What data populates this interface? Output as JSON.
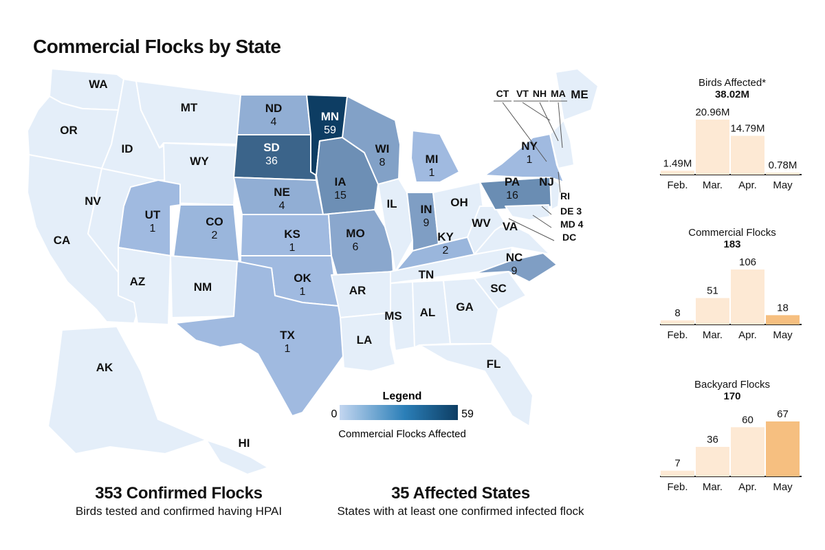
{
  "title": "Commercial Flocks by State",
  "colors": {
    "scale_low": "#a9c2e8",
    "scale_high": "#0d3d63",
    "base_fill": "#e4eef9",
    "state_stroke": "#ffffff",
    "bar_light": "#fde9d4",
    "bar_mid": "#fbd9b2",
    "bar_strong": "#f6bf80"
  },
  "states": [
    {
      "abbr": "WA",
      "flocks": ""
    },
    {
      "abbr": "OR",
      "flocks": ""
    },
    {
      "abbr": "CA",
      "flocks": ""
    },
    {
      "abbr": "NV",
      "flocks": ""
    },
    {
      "abbr": "ID",
      "flocks": ""
    },
    {
      "abbr": "MT",
      "flocks": ""
    },
    {
      "abbr": "WY",
      "flocks": ""
    },
    {
      "abbr": "UT",
      "flocks": "1"
    },
    {
      "abbr": "AZ",
      "flocks": ""
    },
    {
      "abbr": "CO",
      "flocks": "2"
    },
    {
      "abbr": "NM",
      "flocks": ""
    },
    {
      "abbr": "ND",
      "flocks": "4"
    },
    {
      "abbr": "SD",
      "flocks": "36"
    },
    {
      "abbr": "NE",
      "flocks": "4"
    },
    {
      "abbr": "KS",
      "flocks": "1"
    },
    {
      "abbr": "OK",
      "flocks": "1"
    },
    {
      "abbr": "TX",
      "flocks": "1"
    },
    {
      "abbr": "MN",
      "flocks": "59"
    },
    {
      "abbr": "IA",
      "flocks": "15"
    },
    {
      "abbr": "MO",
      "flocks": "6"
    },
    {
      "abbr": "AR",
      "flocks": ""
    },
    {
      "abbr": "LA",
      "flocks": ""
    },
    {
      "abbr": "WI",
      "flocks": "8"
    },
    {
      "abbr": "IL",
      "flocks": ""
    },
    {
      "abbr": "MI",
      "flocks": "1"
    },
    {
      "abbr": "IN",
      "flocks": "9"
    },
    {
      "abbr": "OH",
      "flocks": ""
    },
    {
      "abbr": "KY",
      "flocks": "2"
    },
    {
      "abbr": "TN",
      "flocks": ""
    },
    {
      "abbr": "MS",
      "flocks": ""
    },
    {
      "abbr": "AL",
      "flocks": ""
    },
    {
      "abbr": "GA",
      "flocks": ""
    },
    {
      "abbr": "FL",
      "flocks": ""
    },
    {
      "abbr": "SC",
      "flocks": ""
    },
    {
      "abbr": "NC",
      "flocks": "9"
    },
    {
      "abbr": "VA",
      "flocks": ""
    },
    {
      "abbr": "WV",
      "flocks": ""
    },
    {
      "abbr": "PA",
      "flocks": "16"
    },
    {
      "abbr": "NY",
      "flocks": "1"
    },
    {
      "abbr": "NJ",
      "flocks": ""
    },
    {
      "abbr": "ME",
      "flocks": ""
    },
    {
      "abbr": "AK",
      "flocks": ""
    },
    {
      "abbr": "HI",
      "flocks": ""
    }
  ],
  "small_states": [
    {
      "abbr": "CT",
      "flocks": ""
    },
    {
      "abbr": "VT",
      "flocks": ""
    },
    {
      "abbr": "NH",
      "flocks": ""
    },
    {
      "abbr": "MA",
      "flocks": ""
    },
    {
      "abbr": "RI",
      "flocks": ""
    },
    {
      "abbr": "DE",
      "flocks": "3"
    },
    {
      "abbr": "MD",
      "flocks": "4"
    },
    {
      "abbr": "DC",
      "flocks": ""
    }
  ],
  "legend": {
    "title": "Legend",
    "min": "0",
    "max": "59",
    "caption": "Commercial Flocks Affected"
  },
  "stats": {
    "confirmed_flocks": {
      "headline": "353 Confirmed Flocks",
      "sub": "Birds tested and confirmed having HPAI"
    },
    "affected_states": {
      "headline": "35 Affected States",
      "sub": "States with at least one confirmed infected flock"
    }
  },
  "chart_data": [
    {
      "type": "bar",
      "title": "Birds Affected*",
      "total": "38.02M",
      "categories": [
        "Feb.",
        "Mar.",
        "Apr.",
        "May"
      ],
      "values": [
        1.49,
        20.96,
        14.79,
        0.78
      ],
      "value_labels": [
        "1.49M",
        "20.96M",
        "14.79M",
        "0.78M"
      ],
      "unit": "M",
      "ymax": 20.96,
      "colors": [
        "#fde9d4",
        "#fde9d4",
        "#fde9d4",
        "#fde9d4"
      ]
    },
    {
      "type": "bar",
      "title": "Commercial Flocks",
      "total": "183",
      "categories": [
        "Feb.",
        "Mar.",
        "Apr.",
        "May"
      ],
      "values": [
        8,
        51,
        106,
        18
      ],
      "value_labels": [
        "8",
        "51",
        "106",
        "18"
      ],
      "ymax": 106,
      "colors": [
        "#fde9d4",
        "#fde9d4",
        "#fde9d4",
        "#f6bf80"
      ]
    },
    {
      "type": "bar",
      "title": "Backyard Flocks",
      "total": "170",
      "categories": [
        "Feb.",
        "Mar.",
        "Apr.",
        "May"
      ],
      "values": [
        7,
        36,
        60,
        67
      ],
      "value_labels": [
        "7",
        "36",
        "60",
        "67"
      ],
      "ymax": 67,
      "colors": [
        "#fde9d4",
        "#fde9d4",
        "#fde9d4",
        "#f6bf80"
      ]
    }
  ]
}
